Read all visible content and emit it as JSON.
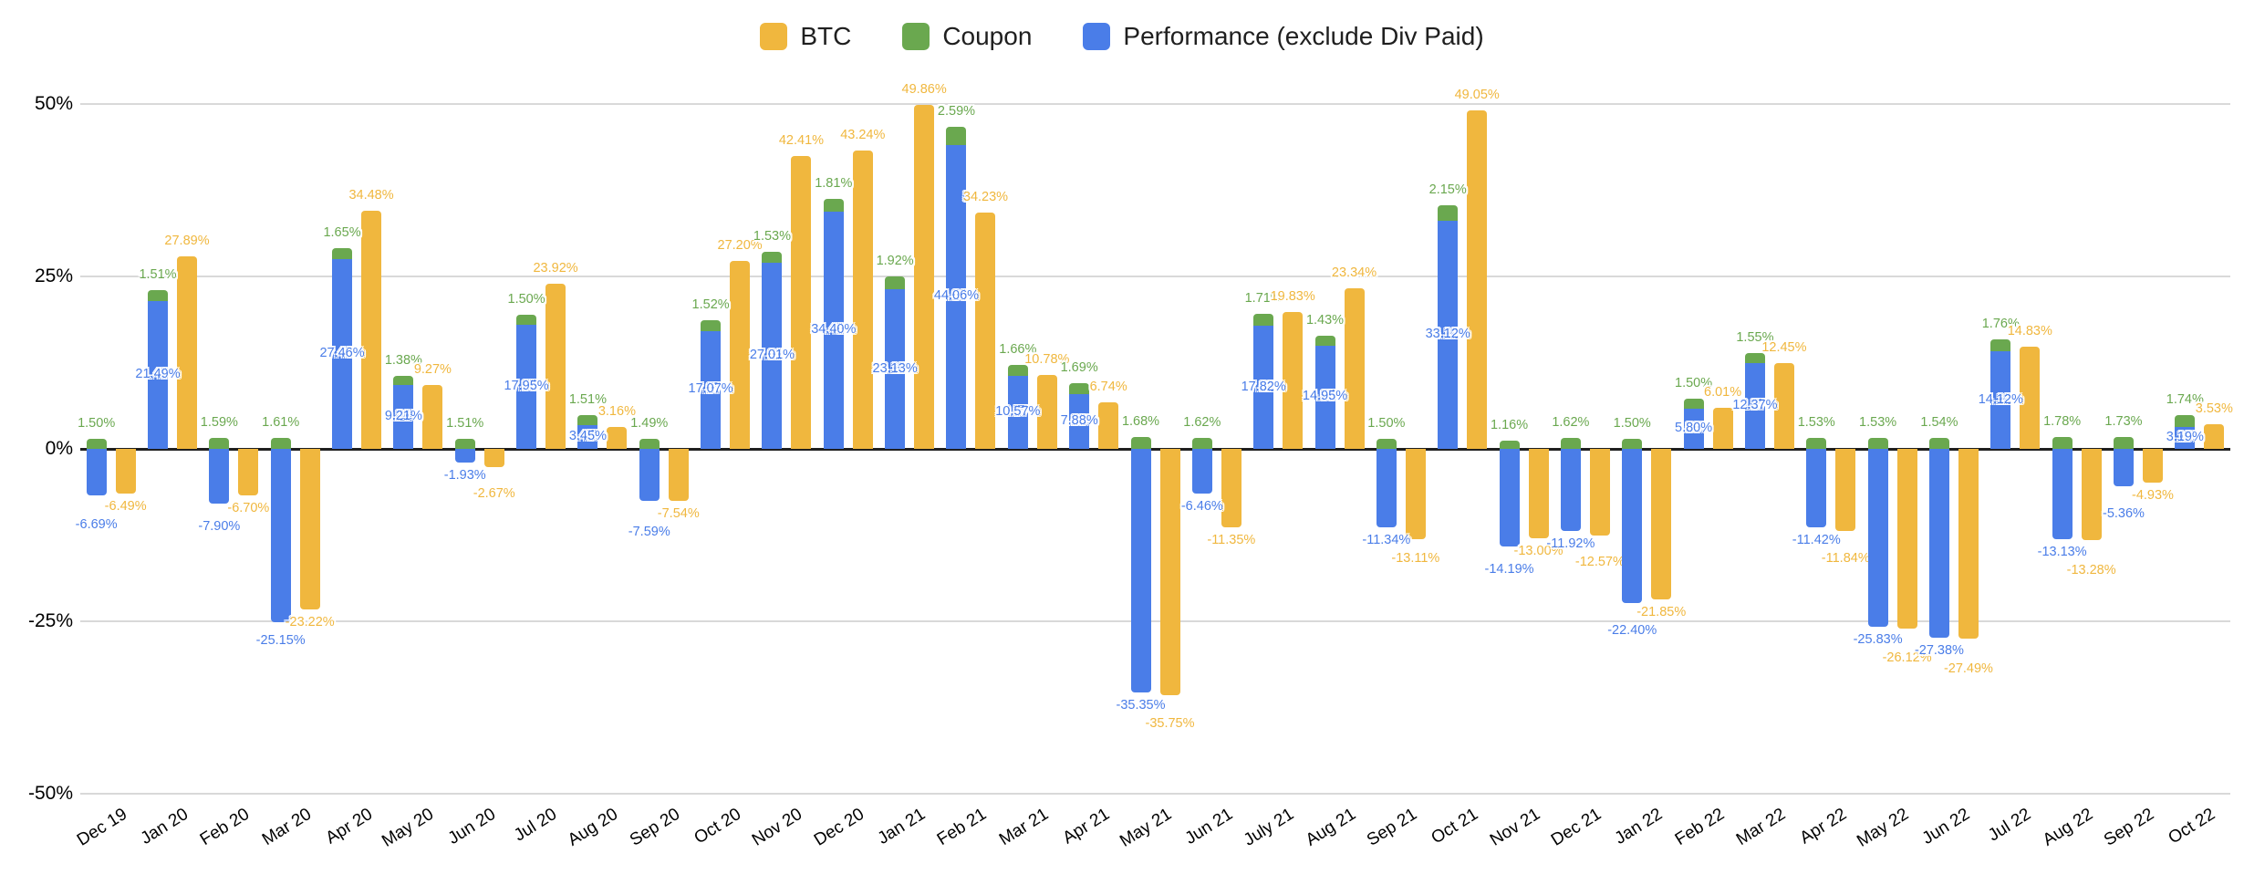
{
  "legend": {
    "items": [
      {
        "label": "BTC",
        "color": "#F0B73E"
      },
      {
        "label": "Coupon",
        "color": "#6AA84F"
      },
      {
        "label": "Performance (exclude Div Paid)",
        "color": "#4A7DE8"
      }
    ],
    "position": "top-center"
  },
  "chart_data": {
    "type": "bar",
    "title": "",
    "xlabel": "",
    "ylabel": "",
    "grid": true,
    "legend_position": "top",
    "x_labels_rotated": true,
    "value_label_format": "two decimals + %",
    "y_axis": {
      "min": -50,
      "max": 50,
      "tick_labels": [
        "50%",
        "25%",
        "0%",
        "-25%",
        "-50%"
      ],
      "tick_values": [
        50,
        25,
        0,
        -25,
        -50
      ]
    },
    "stacking_note": "Coupon is stacked on top of Performance (from baseline when Performance is negative); BTC is a separate adjacent bar",
    "categories": [
      "Dec 19",
      "Jan 20",
      "Feb 20",
      "Mar 20",
      "Apr 20",
      "May 20",
      "Jun 20",
      "Jul 20",
      "Aug 20",
      "Sep 20",
      "Oct 20",
      "Nov 20",
      "Dec 20",
      "Jan 21",
      "Feb 21",
      "Mar 21",
      "Apr 21",
      "May 21",
      "Jun 21",
      "July 21",
      "Aug 21",
      "Sep 21",
      "Oct 21",
      "Nov 21",
      "Dec 21",
      "Jan 22",
      "Feb 22",
      "Mar 22",
      "Apr 22",
      "May 22",
      "Jun 22",
      "Jul 22",
      "Aug 22",
      "Sep 22",
      "Oct 22"
    ],
    "series": [
      {
        "name": "BTC",
        "color": "#F0B73E",
        "values": [
          -6.49,
          27.89,
          -6.7,
          -23.22,
          34.48,
          9.27,
          -2.67,
          23.92,
          3.16,
          -7.54,
          27.2,
          42.41,
          43.24,
          49.86,
          34.23,
          10.78,
          6.74,
          -35.75,
          -11.35,
          19.83,
          23.34,
          -13.11,
          49.05,
          -13.0,
          -12.57,
          -21.85,
          6.01,
          12.45,
          -11.84,
          -26.12,
          -27.49,
          14.83,
          -13.28,
          -4.93,
          3.53
        ]
      },
      {
        "name": "Coupon",
        "color": "#6AA84F",
        "values": [
          1.5,
          1.51,
          1.59,
          1.61,
          1.65,
          1.38,
          1.51,
          1.5,
          1.51,
          1.49,
          1.52,
          1.53,
          1.81,
          1.92,
          2.59,
          1.66,
          1.69,
          1.68,
          1.62,
          1.71,
          1.43,
          1.5,
          2.15,
          1.16,
          1.62,
          1.5,
          1.5,
          1.55,
          1.53,
          1.53,
          1.54,
          1.76,
          1.78,
          1.73,
          1.74
        ]
      },
      {
        "name": "Performance (exclude Div Paid)",
        "color": "#4A7DE8",
        "values": [
          -6.69,
          21.49,
          -7.9,
          -25.15,
          27.46,
          9.21,
          -1.93,
          17.95,
          3.45,
          -7.59,
          17.07,
          27.01,
          34.4,
          23.13,
          44.06,
          10.57,
          7.88,
          -35.35,
          -6.46,
          17.82,
          14.95,
          -11.34,
          33.12,
          -14.19,
          -11.92,
          -22.4,
          5.8,
          12.37,
          -11.42,
          -25.83,
          -27.38,
          14.12,
          -13.13,
          -5.36,
          3.19
        ]
      }
    ]
  }
}
